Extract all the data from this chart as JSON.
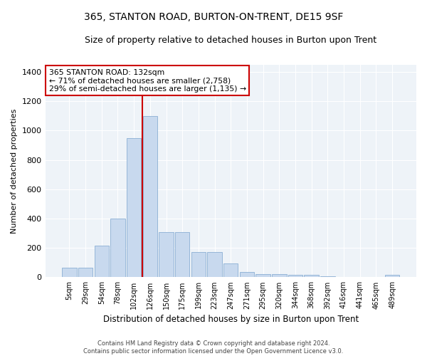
{
  "title": "365, STANTON ROAD, BURTON-ON-TRENT, DE15 9SF",
  "subtitle": "Size of property relative to detached houses in Burton upon Trent",
  "xlabel": "Distribution of detached houses by size in Burton upon Trent",
  "ylabel": "Number of detached properties",
  "bar_color": "#c8d9ee",
  "bar_edge_color": "#8aafd4",
  "vline_color": "#cc0000",
  "vline_x": 4.5,
  "categories": [
    "5sqm",
    "29sqm",
    "54sqm",
    "78sqm",
    "102sqm",
    "126sqm",
    "150sqm",
    "175sqm",
    "199sqm",
    "223sqm",
    "247sqm",
    "271sqm",
    "295sqm",
    "320sqm",
    "344sqm",
    "368sqm",
    "392sqm",
    "416sqm",
    "441sqm",
    "465sqm",
    "489sqm"
  ],
  "values": [
    65,
    65,
    215,
    400,
    950,
    1100,
    310,
    310,
    170,
    170,
    95,
    35,
    20,
    20,
    15,
    15,
    5,
    0,
    0,
    0,
    15
  ],
  "ylim": [
    0,
    1450
  ],
  "yticks": [
    0,
    200,
    400,
    600,
    800,
    1000,
    1200,
    1400
  ],
  "annotation_text": "365 STANTON ROAD: 132sqm\n← 71% of detached houses are smaller (2,758)\n29% of semi-detached houses are larger (1,135) →",
  "annotation_box_color": "#ffffff",
  "annotation_box_edge": "#cc0000",
  "footer_line1": "Contains HM Land Registry data © Crown copyright and database right 2024.",
  "footer_line2": "Contains public sector information licensed under the Open Government Licence v3.0.",
  "background_color": "#eef3f8",
  "title_fontsize": 10,
  "subtitle_fontsize": 9,
  "grid_color": "#ffffff"
}
